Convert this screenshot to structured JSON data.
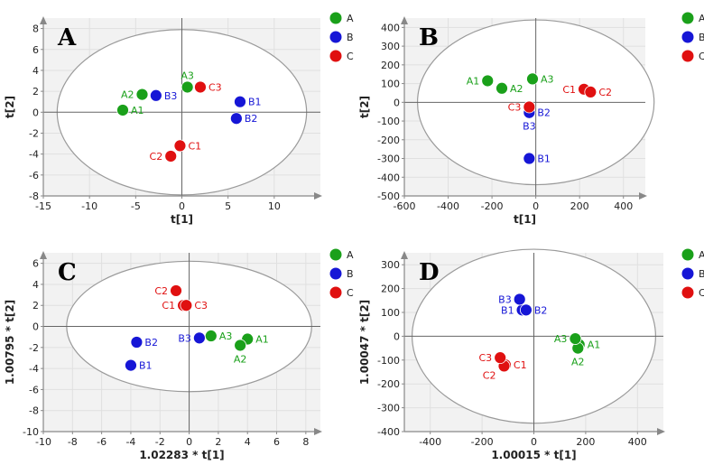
{
  "colors": {
    "A": "#1aa01a",
    "B": "#1616d6",
    "C": "#e01010"
  },
  "chart_data": [
    {
      "type": "scatter",
      "panel": "A",
      "xlabel": "t[1]",
      "ylabel": "t[2]",
      "xlim": [
        -15,
        15
      ],
      "ylim": [
        -8,
        9
      ],
      "xticks": [
        -15,
        -10,
        -5,
        0,
        5,
        10
      ],
      "yticks": [
        -8,
        -6,
        -4,
        -2,
        0,
        2,
        4,
        6,
        8
      ],
      "legend": [
        "A",
        "B",
        "C"
      ],
      "ellipse": {
        "cx": 0,
        "cy": 0,
        "rx": 13.5,
        "ry": 7.9
      },
      "points": [
        {
          "label": "A1",
          "group": "A",
          "x": -6.4,
          "y": 0.2,
          "pos": "r"
        },
        {
          "label": "A2",
          "group": "A",
          "x": -4.3,
          "y": 1.7,
          "pos": "l"
        },
        {
          "label": "A3",
          "group": "A",
          "x": 0.6,
          "y": 2.4,
          "pos": "t"
        },
        {
          "label": "B1",
          "group": "B",
          "x": 6.3,
          "y": 1.0,
          "pos": "r"
        },
        {
          "label": "B2",
          "group": "B",
          "x": 5.9,
          "y": -0.6,
          "pos": "r"
        },
        {
          "label": "B3",
          "group": "B",
          "x": -2.8,
          "y": 1.6,
          "pos": "r"
        },
        {
          "label": "C1",
          "group": "C",
          "x": -0.2,
          "y": -3.2,
          "pos": "r"
        },
        {
          "label": "C2",
          "group": "C",
          "x": -1.2,
          "y": -4.2,
          "pos": "l"
        },
        {
          "label": "C3",
          "group": "C",
          "x": 2.0,
          "y": 2.4,
          "pos": "r"
        }
      ]
    },
    {
      "type": "scatter",
      "panel": "B",
      "xlabel": "t[1]",
      "ylabel": "t[2]",
      "xlim": [
        -600,
        500
      ],
      "ylim": [
        -500,
        450
      ],
      "xticks": [
        -600,
        -400,
        -200,
        0,
        200,
        400
      ],
      "yticks": [
        -500,
        -400,
        -300,
        -200,
        -100,
        0,
        100,
        200,
        300,
        400
      ],
      "legend": [
        "A",
        "B",
        "C"
      ],
      "ellipse": {
        "cx": 0,
        "cy": 0,
        "rx": 540,
        "ry": 440
      },
      "points": [
        {
          "label": "A1",
          "group": "A",
          "x": -220,
          "y": 115,
          "pos": "l"
        },
        {
          "label": "A2",
          "group": "A",
          "x": -155,
          "y": 75,
          "pos": "r"
        },
        {
          "label": "A3",
          "group": "A",
          "x": -15,
          "y": 125,
          "pos": "r"
        },
        {
          "label": "B1",
          "group": "B",
          "x": -30,
          "y": -300,
          "pos": "r"
        },
        {
          "label": "B2",
          "group": "B",
          "x": -30,
          "y": -55,
          "pos": "r"
        },
        {
          "label": "B3",
          "group": "B",
          "x": -30,
          "y": -55,
          "pos": "b"
        },
        {
          "label": "C1",
          "group": "C",
          "x": 220,
          "y": 70,
          "pos": "l"
        },
        {
          "label": "C2",
          "group": "C",
          "x": 250,
          "y": 55,
          "pos": "r"
        },
        {
          "label": "C3",
          "group": "C",
          "x": -30,
          "y": -25,
          "pos": "l"
        }
      ]
    },
    {
      "type": "scatter",
      "panel": "C",
      "xlabel": "1.02283 * t[1]",
      "ylabel": "1.00795 * t[2]",
      "xlim": [
        -10,
        9
      ],
      "ylim": [
        -10,
        7
      ],
      "xticks": [
        -10,
        -8,
        -6,
        -4,
        -2,
        0,
        2,
        4,
        6,
        8
      ],
      "yticks": [
        -10,
        -8,
        -6,
        -4,
        -2,
        0,
        2,
        4,
        6
      ],
      "legend": [
        "A",
        "B",
        "C"
      ],
      "ellipse": {
        "cx": 0,
        "cy": 0,
        "rx": 8.4,
        "ry": 6.2
      },
      "points": [
        {
          "label": "A1",
          "group": "A",
          "x": 4.0,
          "y": -1.2,
          "pos": "r"
        },
        {
          "label": "A2",
          "group": "A",
          "x": 3.5,
          "y": -1.8,
          "pos": "b"
        },
        {
          "label": "A3",
          "group": "A",
          "x": 1.5,
          "y": -0.9,
          "pos": "r"
        },
        {
          "label": "B1",
          "group": "B",
          "x": -4.0,
          "y": -3.7,
          "pos": "r"
        },
        {
          "label": "B2",
          "group": "B",
          "x": -3.6,
          "y": -1.5,
          "pos": "r"
        },
        {
          "label": "B3",
          "group": "B",
          "x": 0.7,
          "y": -1.1,
          "pos": "l"
        },
        {
          "label": "C1",
          "group": "C",
          "x": -0.4,
          "y": 2.0,
          "pos": "l"
        },
        {
          "label": "C2",
          "group": "C",
          "x": -0.9,
          "y": 3.4,
          "pos": "l"
        },
        {
          "label": "C3",
          "group": "C",
          "x": -0.2,
          "y": 2.0,
          "pos": "r"
        }
      ]
    },
    {
      "type": "scatter",
      "panel": "D",
      "xlabel": "1.00015 * t[1]",
      "ylabel": "1.00047 * t[2]",
      "xlim": [
        -500,
        500
      ],
      "ylim": [
        -400,
        350
      ],
      "xticks": [
        -400,
        -200,
        0,
        200,
        400
      ],
      "yticks": [
        -400,
        -300,
        -200,
        -100,
        0,
        100,
        200,
        300
      ],
      "legend": [
        "A",
        "B",
        "C"
      ],
      "ellipse": {
        "cx": 0,
        "cy": 0,
        "rx": 470,
        "ry": 365
      },
      "points": [
        {
          "label": "A1",
          "group": "A",
          "x": 175,
          "y": -35,
          "pos": "r"
        },
        {
          "label": "A2",
          "group": "A",
          "x": 170,
          "y": -50,
          "pos": "b"
        },
        {
          "label": "A3",
          "group": "A",
          "x": 160,
          "y": -10,
          "pos": "l"
        },
        {
          "label": "B1",
          "group": "B",
          "x": -45,
          "y": 110,
          "pos": "l"
        },
        {
          "label": "B2",
          "group": "B",
          "x": -30,
          "y": 110,
          "pos": "r"
        },
        {
          "label": "B3",
          "group": "B",
          "x": -55,
          "y": 155,
          "pos": "l"
        },
        {
          "label": "C1",
          "group": "C",
          "x": -110,
          "y": -120,
          "pos": "r"
        },
        {
          "label": "C2",
          "group": "C",
          "x": -115,
          "y": -125,
          "pos": "bl"
        },
        {
          "label": "C3",
          "group": "C",
          "x": -130,
          "y": -90,
          "pos": "l"
        }
      ]
    }
  ]
}
